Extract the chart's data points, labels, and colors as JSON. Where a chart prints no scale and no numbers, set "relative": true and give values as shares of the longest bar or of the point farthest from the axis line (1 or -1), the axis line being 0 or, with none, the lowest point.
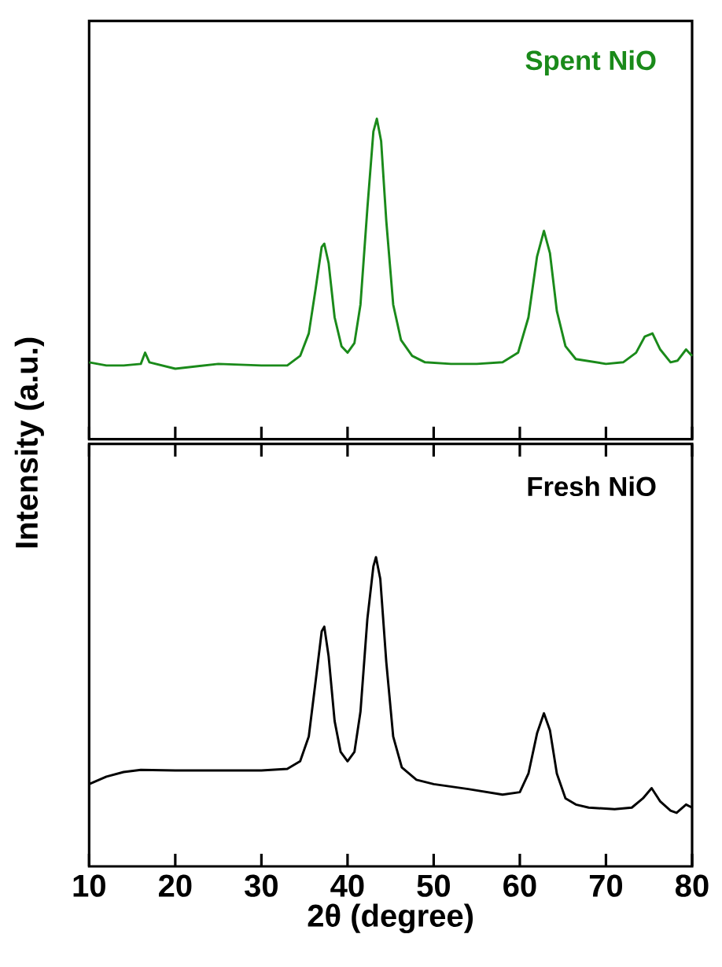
{
  "chart_data": [
    {
      "type": "line",
      "relative": true,
      "xlim": [
        10,
        80
      ],
      "xticks": [
        10,
        20,
        30,
        40,
        50,
        60,
        70,
        80
      ],
      "tick_labels": false,
      "ylabel": "Intensity (a.u.)",
      "series": [
        {
          "name": "Spent NiO",
          "color": "#1a8a1a",
          "x": [
            10,
            12,
            14,
            16,
            16.5,
            17,
            20,
            25,
            30,
            33,
            34.5,
            35.5,
            36.3,
            37.0,
            37.3,
            37.8,
            38.5,
            39.3,
            40.0,
            40.8,
            41.5,
            42.3,
            43.0,
            43.4,
            43.9,
            44.5,
            45.3,
            46.2,
            47.5,
            49,
            52,
            55,
            58,
            59.8,
            61,
            62,
            62.8,
            63.5,
            64.3,
            65.3,
            66.5,
            70,
            72,
            73.5,
            74.5,
            75.4,
            76.3,
            77.5,
            78.3,
            79.3,
            80
          ],
          "values": [
            0.24,
            0.23,
            0.23,
            0.235,
            0.27,
            0.24,
            0.22,
            0.235,
            0.23,
            0.23,
            0.26,
            0.33,
            0.47,
            0.6,
            0.61,
            0.55,
            0.38,
            0.29,
            0.27,
            0.3,
            0.42,
            0.72,
            0.96,
            1.0,
            0.93,
            0.68,
            0.42,
            0.31,
            0.26,
            0.24,
            0.235,
            0.235,
            0.24,
            0.27,
            0.38,
            0.57,
            0.65,
            0.58,
            0.4,
            0.29,
            0.25,
            0.235,
            0.24,
            0.27,
            0.32,
            0.33,
            0.28,
            0.24,
            0.245,
            0.28,
            0.26
          ]
        }
      ]
    },
    {
      "type": "line",
      "relative": true,
      "xlim": [
        10,
        80
      ],
      "xticks": [
        10,
        20,
        30,
        40,
        50,
        60,
        70,
        80
      ],
      "tick_labels": "x",
      "xlabel": "2θ (degree)",
      "series": [
        {
          "name": "Fresh NiO",
          "color": "#000000",
          "x": [
            10,
            12,
            14,
            16,
            20,
            25,
            30,
            33,
            34.5,
            35.5,
            36.3,
            37.0,
            37.3,
            37.8,
            38.5,
            39.2,
            40.0,
            40.8,
            41.5,
            42.3,
            43.0,
            43.3,
            43.8,
            44.5,
            45.3,
            46.3,
            48,
            50,
            54,
            58,
            60,
            61,
            62,
            62.8,
            63.5,
            64.3,
            65.3,
            66.5,
            68,
            71,
            73,
            74.3,
            75.3,
            76.3,
            77.5,
            78.2,
            79.3,
            80
          ],
          "values": [
            0.266,
            0.29,
            0.305,
            0.312,
            0.31,
            0.31,
            0.31,
            0.315,
            0.34,
            0.42,
            0.6,
            0.76,
            0.775,
            0.68,
            0.47,
            0.37,
            0.34,
            0.37,
            0.5,
            0.8,
            0.97,
            1.0,
            0.93,
            0.66,
            0.42,
            0.32,
            0.28,
            0.266,
            0.25,
            0.232,
            0.24,
            0.3,
            0.43,
            0.495,
            0.44,
            0.3,
            0.22,
            0.2,
            0.19,
            0.185,
            0.19,
            0.22,
            0.253,
            0.21,
            0.18,
            0.173,
            0.2,
            0.19
          ]
        }
      ]
    }
  ]
}
